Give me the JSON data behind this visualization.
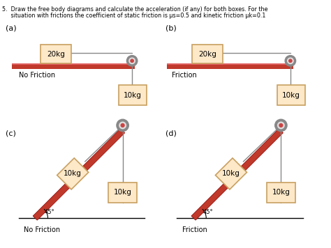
{
  "background_color": "#ffffff",
  "box_fill": "#fde8c8",
  "box_edge": "#c8a060",
  "ramp_color": "#c0392b",
  "ramp_edge": "#8b0000",
  "pulley_outer": "#888888",
  "pulley_inner": "#cc4444",
  "pulley_mid": "#dddddd",
  "rope_color": "#888888",
  "surface_color": "#c0392b",
  "surface_top_color": "#e06060",
  "label_a": "(a)",
  "label_b": "(b)",
  "label_c": "(c)",
  "label_d": "(d)",
  "text_no_friction": "No Friction",
  "text_friction": "Friction",
  "angle_label": "45°",
  "title_line1": "5.  Draw the free body diagrams and calculate the acceleration (if any) for both boxes. For the",
  "title_line2": "     situation with frictions the coefficient of static friction is μs=0.5 and kinetic friction μk=0.1"
}
